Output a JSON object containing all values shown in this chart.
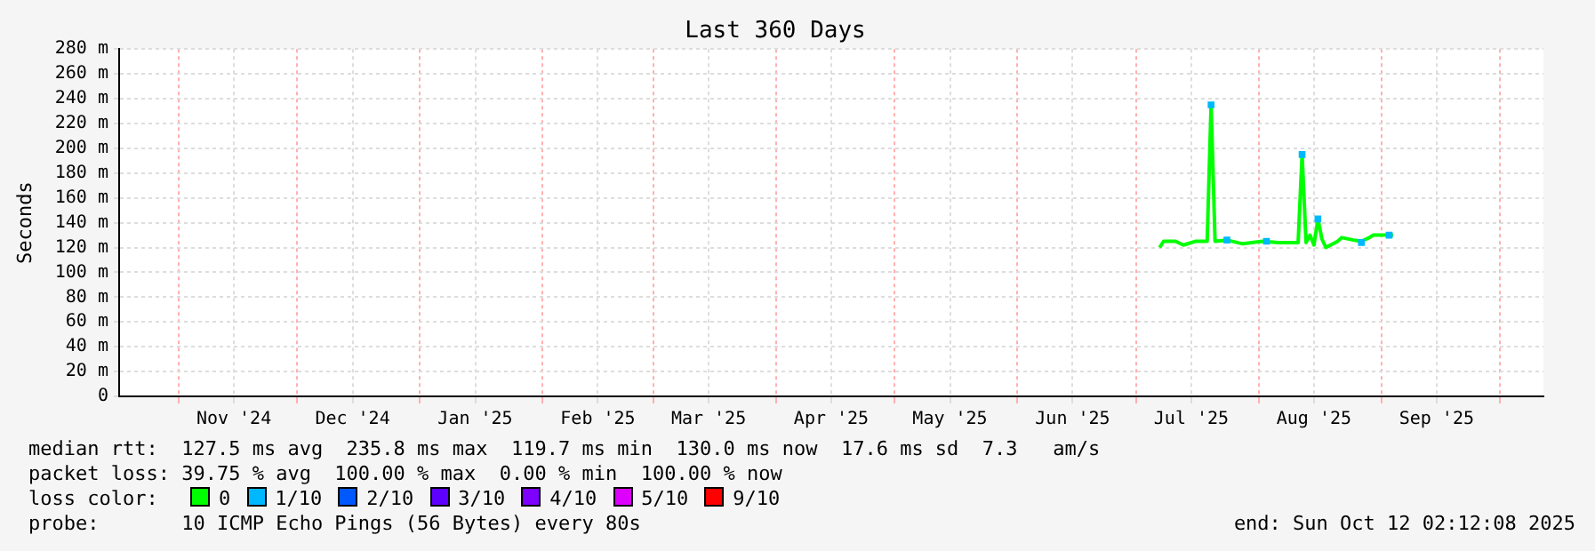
{
  "chart_data": {
    "type": "line",
    "title": "Last 360 Days",
    "ylabel": "Seconds",
    "legend_title": "loss color:",
    "legend": "bottom",
    "grid": true,
    "marker": "none",
    "xlim": [
      "2024-10-17",
      "2025-10-12"
    ],
    "xticks": [
      {
        "value": "2024-11-01",
        "label": null
      },
      {
        "value": "2024-11-15",
        "label": "Nov '24"
      },
      {
        "value": "2024-12-01",
        "label": null
      },
      {
        "value": "2024-12-15",
        "label": "Dec '24"
      },
      {
        "value": "2025-01-01",
        "label": null
      },
      {
        "value": "2025-01-15",
        "label": "Jan '25"
      },
      {
        "value": "2025-02-01",
        "label": null
      },
      {
        "value": "2025-02-15",
        "label": "Feb '25"
      },
      {
        "value": "2025-03-01",
        "label": null
      },
      {
        "value": "2025-03-15",
        "label": "Mar '25"
      },
      {
        "value": "2025-04-01",
        "label": null
      },
      {
        "value": "2025-04-15",
        "label": "Apr '25"
      },
      {
        "value": "2025-05-01",
        "label": null
      },
      {
        "value": "2025-05-15",
        "label": "May '25"
      },
      {
        "value": "2025-06-01",
        "label": null
      },
      {
        "value": "2025-06-15",
        "label": "Jun '25"
      },
      {
        "value": "2025-07-01",
        "label": null
      },
      {
        "value": "2025-07-15",
        "label": "Jul '25"
      },
      {
        "value": "2025-08-01",
        "label": null
      },
      {
        "value": "2025-08-15",
        "label": "Aug '25"
      },
      {
        "value": "2025-09-01",
        "label": null
      },
      {
        "value": "2025-09-15",
        "label": "Sep '25"
      },
      {
        "value": "2025-10-01",
        "label": null
      }
    ],
    "ylim": [
      0,
      280
    ],
    "yticks": [
      0,
      {
        "value": 20,
        "label": "20 m"
      },
      {
        "value": 40,
        "label": "40 m"
      },
      {
        "value": 60,
        "label": "60 m"
      },
      {
        "value": 80,
        "label": "80 m"
      },
      {
        "value": 100,
        "label": "100 m"
      },
      {
        "value": 120,
        "label": "120 m"
      },
      {
        "value": 140,
        "label": "140 m"
      },
      {
        "value": 160,
        "label": "160 m"
      },
      {
        "value": 180,
        "label": "180 m"
      },
      {
        "value": 200,
        "label": "200 m"
      },
      {
        "value": 220,
        "label": "220 m"
      },
      {
        "value": 240,
        "label": "240 m"
      },
      {
        "value": 260,
        "label": "260 m"
      },
      {
        "value": 280,
        "label": "280 m"
      }
    ],
    "series": [
      {
        "name": "0",
        "color": "#00ff00",
        "x": [
          "2025-07-07",
          "2025-07-08",
          "2025-07-11",
          "2025-07-13",
          "2025-07-16",
          "2025-07-19",
          "2025-07-20",
          "2025-07-21",
          "2025-07-24",
          "2025-07-28",
          "2025-08-02",
          "2025-08-06",
          "2025-08-11",
          "2025-08-12",
          "2025-08-13",
          "2025-08-14",
          "2025-08-15",
          "2025-08-16",
          "2025-08-17",
          "2025-08-18",
          "2025-08-21",
          "2025-08-22",
          "2025-08-25",
          "2025-08-27",
          "2025-08-29",
          "2025-08-30",
          "2025-09-04"
        ],
        "values": [
          120,
          125,
          125,
          122,
          125,
          125,
          235,
          125,
          126,
          123,
          125,
          124,
          124,
          195,
          124,
          130,
          122,
          143,
          127,
          120,
          125,
          128,
          126,
          125,
          128,
          130,
          130
        ]
      },
      {
        "name": "1/10",
        "color": "#00b8ff",
        "type": "scatter",
        "marker": "square",
        "x": [
          "2025-07-20",
          "2025-07-24",
          "2025-08-03",
          "2025-08-12",
          "2025-08-16",
          "2025-08-27",
          "2025-09-03"
        ],
        "values": [
          235,
          126,
          125,
          195,
          143,
          124,
          130
        ]
      },
      {
        "name": "2/10",
        "color": "#0059ff",
        "type": "scatter",
        "marker": "square"
      },
      {
        "name": "3/10",
        "color": "#5e00ff",
        "type": "scatter",
        "marker": "square"
      },
      {
        "name": "4/10",
        "color": "#7e00ff",
        "type": "scatter",
        "marker": "square"
      },
      {
        "name": "5/10",
        "color": "#dd00ff",
        "type": "scatter",
        "marker": "square"
      },
      {
        "name": "9/10",
        "color": "#ff0000",
        "type": "scatter",
        "marker": "square"
      }
    ],
    "annotations": [
      "median rtt:  127.5 ms avg  235.8 ms max  119.7 ms min  130.0 ms now  17.6 ms sd  7.3   am/s",
      "packet loss: 39.75 % avg  100.00 % max  0.00 % min  100.00 % now",
      "probe:       10 ICMP Echo Pings (56 Bytes) every 80s",
      "end: Sun Oct 12 02:12:08 2025"
    ]
  }
}
